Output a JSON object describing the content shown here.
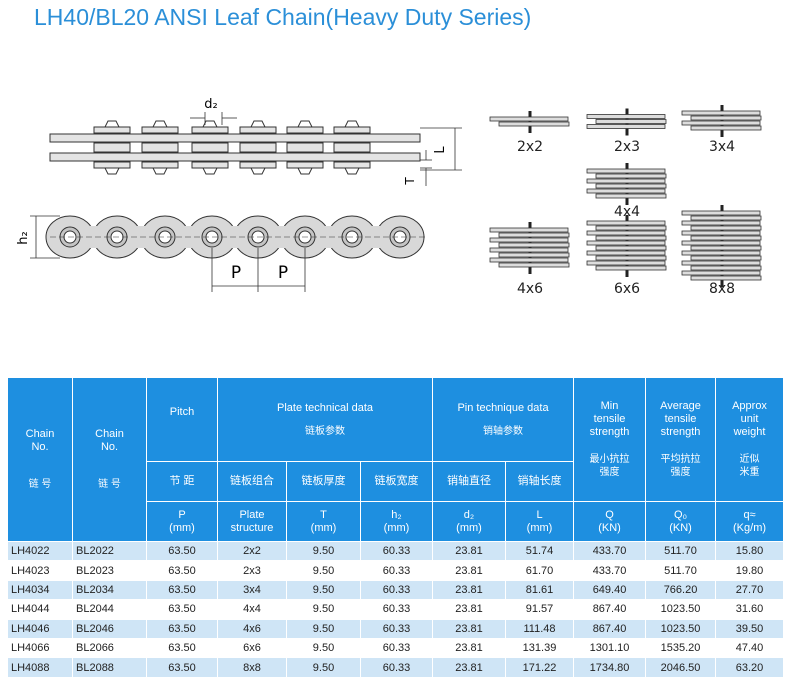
{
  "header": {
    "title": "LH40/BL20 ANSI Leaf Chain(Heavy Duty Series)"
  },
  "diagram": {
    "dims": [
      "d₂",
      "L",
      "T",
      "h₂",
      "P",
      "P"
    ],
    "configs": [
      "2x2",
      "2x3",
      "3x4",
      "4x4",
      "4x6",
      "6x6",
      "8x8"
    ]
  },
  "table": {
    "header": {
      "chain_no": [
        "Chain\nNo.",
        "链 号"
      ],
      "chain_no_b": [
        "Chain\nNo.",
        "链 号"
      ],
      "pitch": [
        "Pitch",
        "节 距",
        "P\n(mm)"
      ],
      "plate": {
        "title": "Plate technical data",
        "subtitle": "链板参数",
        "cn": [
          "链板组合",
          "链板厚度",
          "链板宽度"
        ],
        "en": [
          "Plate\nstructure",
          "T\n(mm)",
          "h₂\n(mm)"
        ]
      },
      "pin": {
        "title": "Pin technique data",
        "subtitle": "销轴参数",
        "cn": [
          "销轴直径",
          "销轴长度"
        ],
        "en": [
          "d₂\n(mm)",
          "L\n(mm)"
        ]
      },
      "min": [
        "Min\ntensile\nstrength",
        "最小抗拉\n强度",
        "Q\n(KN)"
      ],
      "avg": [
        "Average\ntensile\nstrength",
        "平均抗拉\n强度",
        "Q₀\n(KN)"
      ],
      "weight": [
        "Approx\nunit\nweight",
        "近似\n米重",
        "q≈\n(Kg/m)"
      ]
    },
    "rows": [
      [
        "LH4022",
        "BL2022",
        "63.50",
        "2x2",
        "9.50",
        "60.33",
        "23.81",
        "51.74",
        "433.70",
        "511.70",
        "15.80"
      ],
      [
        "LH4023",
        "BL2023",
        "63.50",
        "2x3",
        "9.50",
        "60.33",
        "23.81",
        "61.70",
        "433.70",
        "511.70",
        "19.80"
      ],
      [
        "LH4034",
        "BL2034",
        "63.50",
        "3x4",
        "9.50",
        "60.33",
        "23.81",
        "81.61",
        "649.40",
        "766.20",
        "27.70"
      ],
      [
        "LH4044",
        "BL2044",
        "63.50",
        "4x4",
        "9.50",
        "60.33",
        "23.81",
        "91.57",
        "867.40",
        "1023.50",
        "31.60"
      ],
      [
        "LH4046",
        "BL2046",
        "63.50",
        "4x6",
        "9.50",
        "60.33",
        "23.81",
        "111.48",
        "867.40",
        "1023.50",
        "39.50"
      ],
      [
        "LH4066",
        "BL2066",
        "63.50",
        "6x6",
        "9.50",
        "60.33",
        "23.81",
        "131.39",
        "1301.10",
        "1535.20",
        "47.40"
      ],
      [
        "LH4088",
        "BL2088",
        "63.50",
        "8x8",
        "9.50",
        "60.33",
        "23.81",
        "171.22",
        "1734.80",
        "2046.50",
        "63.20"
      ]
    ]
  }
}
